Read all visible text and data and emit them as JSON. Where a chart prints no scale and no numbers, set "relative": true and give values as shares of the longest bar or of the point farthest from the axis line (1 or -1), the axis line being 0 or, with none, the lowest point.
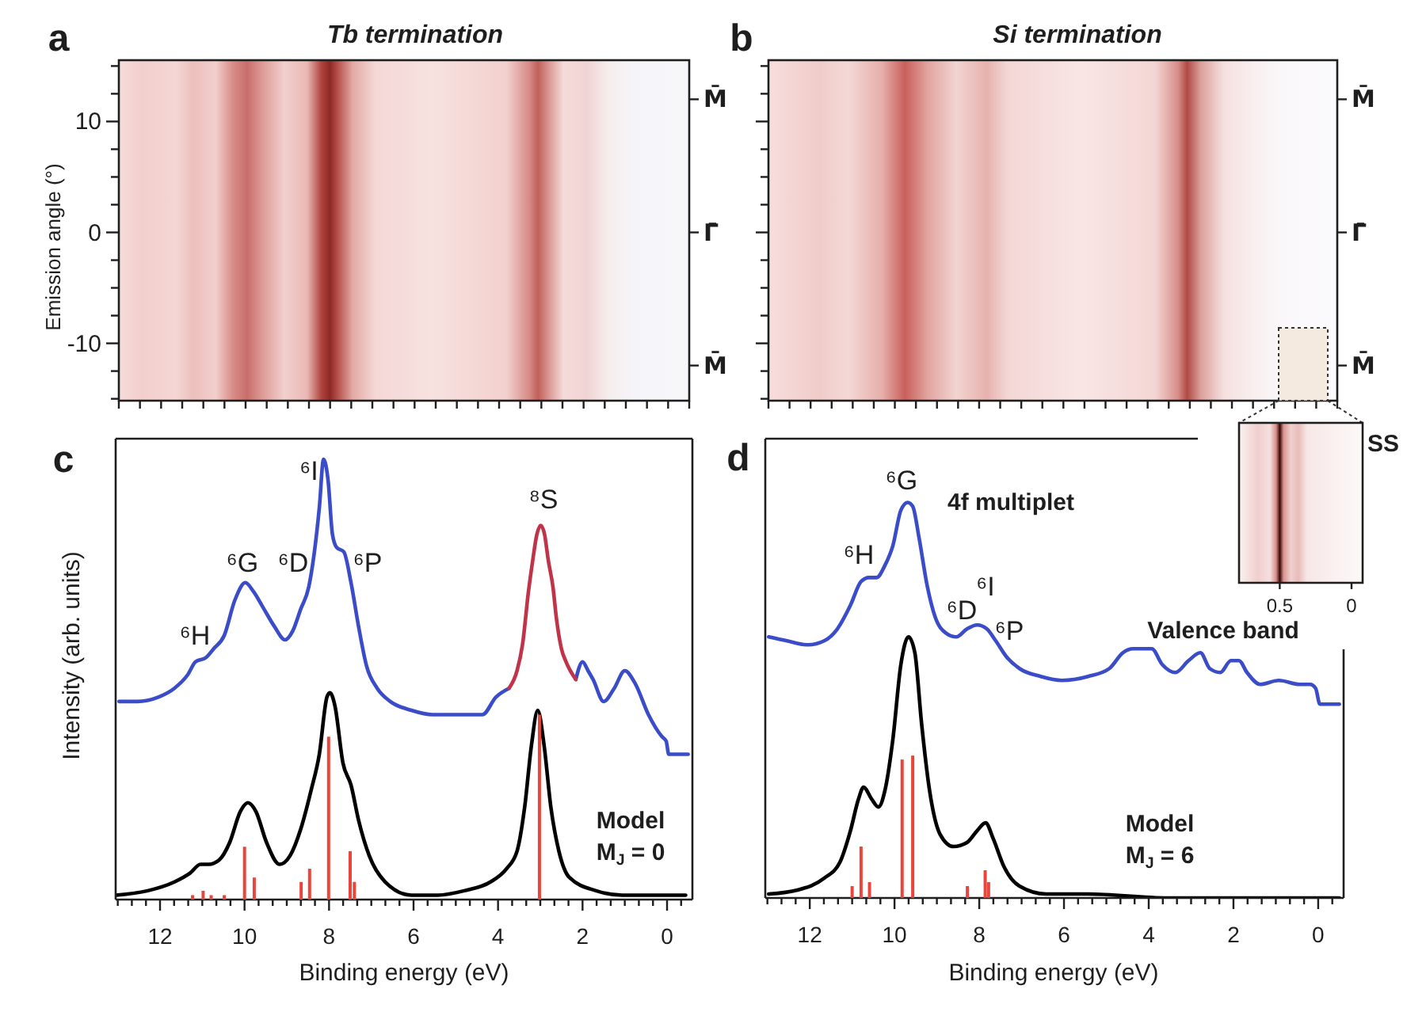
{
  "chart_data": [
    {
      "type": "other",
      "title": "Tb termination",
      "ylabel": "Emission angle (°)",
      "annotations": [
        "a",
        "10",
        "0",
        "-10",
        "M̄",
        "Γ̄",
        "M̄"
      ]
    },
    {
      "type": "other",
      "title": "Si termination",
      "annotations": [
        "b",
        "M̄",
        "Γ̄",
        "M̄"
      ]
    },
    {
      "type": "line",
      "relative": true,
      "xlabel": "Binding energy (eV)",
      "ylabel": "Intensity (arb. units)",
      "xlim": [
        13.05,
        -0.6
      ],
      "xticks": [
        {
          "value": 13,
          "label": null
        },
        {
          "value": 12.667,
          "label": null
        },
        {
          "value": 12.333,
          "label": null
        },
        12,
        {
          "value": 11.667,
          "label": null
        },
        {
          "value": 11.333,
          "label": null
        },
        {
          "value": 11,
          "label": null
        },
        {
          "value": 10.667,
          "label": null
        },
        {
          "value": 10.333,
          "label": null
        },
        10,
        {
          "value": 9.667,
          "label": null
        },
        {
          "value": 9.333,
          "label": null
        },
        {
          "value": 9,
          "label": null
        },
        {
          "value": 8.667,
          "label": null
        },
        {
          "value": 8.333,
          "label": null
        },
        8,
        {
          "value": 7.667,
          "label": null
        },
        {
          "value": 7.333,
          "label": null
        },
        {
          "value": 7,
          "label": null
        },
        {
          "value": 6.667,
          "label": null
        },
        {
          "value": 6.333,
          "label": null
        },
        6,
        {
          "value": 5.667,
          "label": null
        },
        {
          "value": 5.333,
          "label": null
        },
        {
          "value": 5,
          "label": null
        },
        {
          "value": 4.667,
          "label": null
        },
        {
          "value": 4.333,
          "label": null
        },
        4,
        {
          "value": 3.667,
          "label": null
        },
        {
          "value": 3.333,
          "label": null
        },
        {
          "value": 3,
          "label": null
        },
        {
          "value": 2.667,
          "label": null
        },
        {
          "value": 2.333,
          "label": null
        },
        2,
        {
          "value": 1.667,
          "label": null
        },
        {
          "value": 1.333,
          "label": null
        },
        {
          "value": 1,
          "label": null
        },
        {
          "value": 0.667,
          "label": null
        },
        {
          "value": 0.333,
          "label": null
        },
        0,
        {
          "value": -0.333,
          "label": null
        }
      ],
      "series": [
        {
          "color": "#3a4cc8",
          "x": [
            12.97,
            12.54,
            12.04,
            11.66,
            11.35,
            11.16,
            10.91,
            10.73,
            10.48,
            10.23,
            9.98,
            9.79,
            9.54,
            9.29,
            9.04,
            8.86,
            8.67,
            8.48,
            8.36,
            8.23,
            8.13,
            8.02,
            7.92,
            7.82,
            7.65,
            7.48,
            7.3,
            7.11,
            6.86,
            6.55,
            6.05,
            5.55,
            4.93,
            4.37,
            4.05,
            3.74,
            3.0,
            2.16,
            2.0,
            1.87,
            1.75,
            1.5,
            1.25,
            1.0,
            0.75,
            0.44,
            0.12,
            0.02,
            -0.04,
            -0.5
          ],
          "values": [
            0.45,
            0.45,
            0.46,
            0.48,
            0.51,
            0.54,
            0.55,
            0.57,
            0.6,
            0.68,
            0.72,
            0.7,
            0.66,
            0.62,
            0.59,
            0.61,
            0.66,
            0.71,
            0.78,
            0.89,
            1,
            0.95,
            0.83,
            0.8,
            0.79,
            0.72,
            0.62,
            0.53,
            0.48,
            0.45,
            0.43,
            0.42,
            0.42,
            0.42,
            0.46,
            0.48,
            null,
            0.5,
            0.54,
            0.52,
            0.5,
            0.45,
            0.48,
            0.52,
            0.49,
            0.42,
            0.37,
            0.36,
            0.33,
            0.33
          ]
        },
        {
          "color": "#c0344a",
          "x": [
            3.74,
            3.55,
            3.42,
            3.28,
            3.18,
            3.08,
            2.99,
            2.9,
            2.81,
            2.7,
            2.62,
            2.5,
            2.39,
            2.16
          ],
          "values": [
            0.48,
            0.52,
            0.58,
            0.7,
            0.77,
            0.83,
            0.85,
            0.83,
            0.77,
            0.71,
            0.64,
            0.57,
            0.54,
            0.5
          ]
        },
        {
          "color": "#000000",
          "x": [
            13.04,
            12.29,
            11.66,
            11.29,
            11.04,
            10.85,
            10.6,
            10.35,
            10.1,
            9.92,
            9.73,
            9.48,
            9.17,
            8.92,
            8.67,
            8.42,
            8.23,
            8.05,
            7.98,
            7.86,
            7.67,
            7.48,
            7.3,
            7.05,
            6.67,
            6.05,
            5.43,
            4.8,
            4.18,
            3.8,
            3.55,
            3.37,
            3.21,
            3.06,
            2.91,
            2.75,
            2.56,
            2.31,
            1.68,
            1.06,
            0.31,
            -0.44
          ],
          "values": [
            0.01,
            0.02,
            0.04,
            0.06,
            0.08,
            0.08,
            0.09,
            0.13,
            0.2,
            0.22,
            0.2,
            0.13,
            0.08,
            0.1,
            0.16,
            0.25,
            0.33,
            0.46,
            0.47,
            0.44,
            0.31,
            0.26,
            0.18,
            0.1,
            0.04,
            0.01,
            0.01,
            0.02,
            0.04,
            0.07,
            0.11,
            0.21,
            0.35,
            0.43,
            0.35,
            0.21,
            0.11,
            0.05,
            0.02,
            0.01,
            0.01,
            0.01
          ]
        },
        {
          "type": "bar",
          "color": "#e8463c",
          "x": [
            11.23,
            10.98,
            10.79,
            10.48,
            10.0,
            9.77,
            8.66,
            8.46,
            8.01,
            7.5,
            7.4,
            3.02
          ],
          "values": [
            0.01,
            0.02,
            0.01,
            0.01,
            0.12,
            0.05,
            0.04,
            0.07,
            0.37,
            0.11,
            0.04,
            0.42
          ]
        }
      ],
      "annotations": [
        "c",
        "⁶H",
        "⁶G",
        "⁶D",
        "⁶I",
        "⁶P",
        "⁸S",
        "Model",
        "M$_{J}$ = 0"
      ]
    },
    {
      "type": "line",
      "relative": true,
      "xlabel": "Binding energy (eV)",
      "xlim": [
        13.05,
        -0.6
      ],
      "xticks": [
        {
          "value": 13,
          "label": null
        },
        {
          "value": 12.667,
          "label": null
        },
        {
          "value": 12.333,
          "label": null
        },
        12,
        {
          "value": 11.667,
          "label": null
        },
        {
          "value": 11.333,
          "label": null
        },
        {
          "value": 11,
          "label": null
        },
        {
          "value": 10.667,
          "label": null
        },
        {
          "value": 10.333,
          "label": null
        },
        10,
        {
          "value": 9.667,
          "label": null
        },
        {
          "value": 9.333,
          "label": null
        },
        {
          "value": 9,
          "label": null
        },
        {
          "value": 8.667,
          "label": null
        },
        {
          "value": 8.333,
          "label": null
        },
        8,
        {
          "value": 7.667,
          "label": null
        },
        {
          "value": 7.333,
          "label": null
        },
        {
          "value": 7,
          "label": null
        },
        {
          "value": 6.667,
          "label": null
        },
        {
          "value": 6.333,
          "label": null
        },
        6,
        {
          "value": 5.667,
          "label": null
        },
        {
          "value": 5.333,
          "label": null
        },
        {
          "value": 5,
          "label": null
        },
        {
          "value": 4.667,
          "label": null
        },
        {
          "value": 4.333,
          "label": null
        },
        4,
        {
          "value": 3.667,
          "label": null
        },
        {
          "value": 3.333,
          "label": null
        },
        {
          "value": 3,
          "label": null
        },
        {
          "value": 2.667,
          "label": null
        },
        {
          "value": 2.333,
          "label": null
        },
        2,
        {
          "value": 1.667,
          "label": null
        },
        {
          "value": 1.333,
          "label": null
        },
        {
          "value": 1,
          "label": null
        },
        {
          "value": 0.667,
          "label": null
        },
        {
          "value": 0.333,
          "label": null
        },
        0,
        {
          "value": -0.333,
          "label": null
        }
      ],
      "series": [
        {
          "color": "#3a4cc8",
          "x": [
            12.97,
            12.54,
            12.04,
            11.66,
            11.35,
            11.04,
            10.79,
            10.6,
            10.42,
            10.23,
            10.04,
            9.85,
            9.69,
            9.57,
            9.42,
            9.23,
            9.04,
            8.79,
            8.54,
            8.29,
            8.05,
            7.82,
            7.61,
            7.36,
            7.05,
            6.55,
            6.05,
            5.43,
            4.93,
            4.61,
            4.37,
            3.93,
            3.68,
            3.37,
            3.06,
            2.78,
            2.56,
            2.31,
            2.06,
            1.87,
            1.68,
            1.37,
            0.93,
            0.44,
            0.19,
            0.06,
            -0.04,
            -0.5
          ],
          "values": [
            0.66,
            0.65,
            0.64,
            0.65,
            0.68,
            0.74,
            0.8,
            0.81,
            0.81,
            0.84,
            0.89,
            0.98,
            1,
            0.99,
            0.91,
            0.79,
            0.71,
            0.67,
            0.66,
            0.68,
            0.69,
            0.68,
            0.65,
            0.61,
            0.58,
            0.56,
            0.55,
            0.56,
            0.58,
            0.62,
            0.63,
            0.63,
            0.59,
            0.57,
            0.6,
            0.62,
            0.58,
            0.57,
            0.6,
            0.6,
            0.57,
            0.54,
            0.55,
            0.54,
            0.54,
            0.53,
            0.49,
            0.49
          ]
        },
        {
          "color": "#000000",
          "x": [
            12.97,
            12.29,
            11.66,
            11.29,
            11.04,
            10.85,
            10.73,
            10.54,
            10.38,
            10.23,
            10.04,
            9.85,
            9.67,
            9.52,
            9.36,
            9.17,
            8.92,
            8.61,
            8.29,
            8.05,
            7.85,
            7.67,
            7.42,
            7.05,
            6.42,
            5.43,
            3.55,
            1.06,
            -0.5
          ],
          "values": [
            0.01,
            0.02,
            0.05,
            0.09,
            0.17,
            0.25,
            0.28,
            0.25,
            0.23,
            0.27,
            0.4,
            0.59,
            0.66,
            0.62,
            0.44,
            0.27,
            0.16,
            0.13,
            0.14,
            0.17,
            0.19,
            0.15,
            0.08,
            0.03,
            0.01,
            0.01,
            0,
            0,
            0
          ]
        },
        {
          "type": "bar",
          "color": "#e8463c",
          "x": [
            11.0,
            10.79,
            10.59,
            9.82,
            9.57,
            8.28,
            7.86,
            7.78
          ],
          "values": [
            0.03,
            0.13,
            0.04,
            0.35,
            0.36,
            0.03,
            0.07,
            0.04
          ]
        }
      ],
      "annotations": [
        "d",
        "⁶H",
        "⁶G",
        "4f multiplet",
        "⁶D",
        "⁶I",
        "⁶P",
        "Valence band",
        "Model",
        "M$_{J}$ = 6"
      ]
    },
    {
      "type": "other",
      "annotations": [
        "SS",
        "0.5",
        "0"
      ]
    }
  ]
}
